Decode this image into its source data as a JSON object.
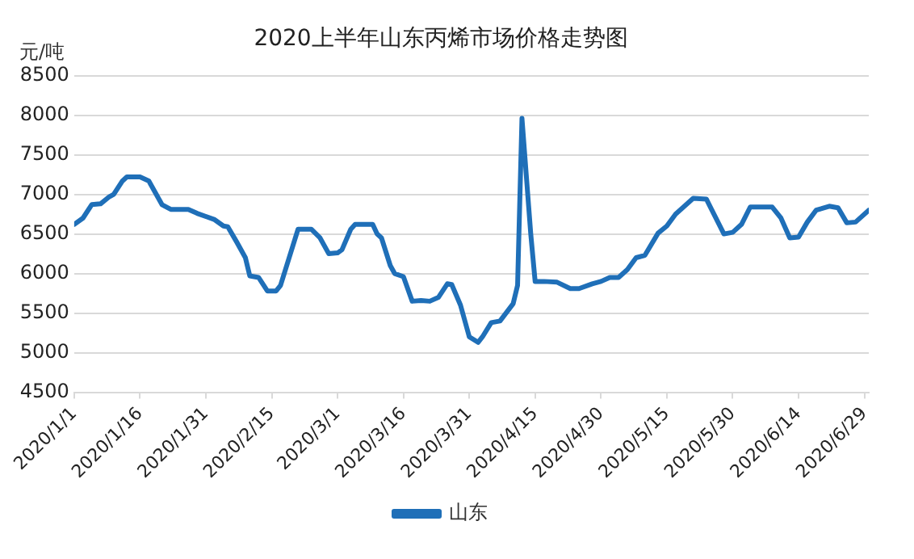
{
  "chart_data": {
    "type": "line",
    "title": "2020上半年山东丙烯市场价格走势图",
    "ylabel": "元/吨",
    "x": [
      "2020-01-01",
      "2020-01-03",
      "2020-01-05",
      "2020-01-07",
      "2020-01-09",
      "2020-01-10",
      "2020-01-12",
      "2020-01-13",
      "2020-01-16",
      "2020-01-18",
      "2020-01-21",
      "2020-01-23",
      "2020-01-27",
      "2020-01-29",
      "2020-02-02",
      "2020-02-04",
      "2020-02-05",
      "2020-02-07",
      "2020-02-09",
      "2020-02-10",
      "2020-02-12",
      "2020-02-14",
      "2020-02-16",
      "2020-02-17",
      "2020-02-21",
      "2020-02-24",
      "2020-02-26",
      "2020-02-28",
      "2020-03-01",
      "2020-03-02",
      "2020-03-04",
      "2020-03-05",
      "2020-03-09",
      "2020-03-10",
      "2020-03-11",
      "2020-03-13",
      "2020-03-14",
      "2020-03-16",
      "2020-03-18",
      "2020-03-20",
      "2020-03-22",
      "2020-03-24",
      "2020-03-26",
      "2020-03-27",
      "2020-03-29",
      "2020-03-31",
      "2020-04-02",
      "2020-04-03",
      "2020-04-05",
      "2020-04-07",
      "2020-04-10",
      "2020-04-11",
      "2020-04-12",
      "2020-04-14",
      "2020-04-15",
      "2020-04-17",
      "2020-04-20",
      "2020-04-23",
      "2020-04-25",
      "2020-04-28",
      "2020-04-30",
      "2020-05-02",
      "2020-05-04",
      "2020-05-06",
      "2020-05-08",
      "2020-05-10",
      "2020-05-13",
      "2020-05-15",
      "2020-05-17",
      "2020-05-21",
      "2020-05-24",
      "2020-05-28",
      "2020-05-30",
      "2020-06-01",
      "2020-06-03",
      "2020-06-08",
      "2020-06-10",
      "2020-06-12",
      "2020-06-14",
      "2020-06-16",
      "2020-06-18",
      "2020-06-21",
      "2020-06-23",
      "2020-06-25",
      "2020-06-27",
      "2020-06-30"
    ],
    "series": [
      {
        "name": "山东",
        "color": "#1f6fb8",
        "values": [
          6620,
          6700,
          6870,
          6880,
          6970,
          7000,
          7170,
          7220,
          7220,
          7170,
          6870,
          6810,
          6810,
          6760,
          6680,
          6600,
          6590,
          6400,
          6200,
          5970,
          5950,
          5780,
          5780,
          5850,
          6560,
          6560,
          6450,
          6250,
          6260,
          6300,
          6560,
          6620,
          6620,
          6500,
          6450,
          6100,
          6000,
          5960,
          5650,
          5660,
          5650,
          5700,
          5870,
          5860,
          5600,
          5200,
          5130,
          5200,
          5380,
          5400,
          5620,
          5850,
          7960,
          6500,
          5900,
          5900,
          5890,
          5810,
          5810,
          5870,
          5900,
          5950,
          5950,
          6050,
          6200,
          6230,
          6510,
          6600,
          6750,
          6950,
          6940,
          6500,
          6520,
          6620,
          6840,
          6840,
          6700,
          6450,
          6460,
          6650,
          6800,
          6850,
          6830,
          6640,
          6650,
          6800
        ]
      }
    ],
    "xlim": [
      "2020-01-01",
      "2020-06-30"
    ],
    "xticks": [
      {
        "value": "2020-01-01",
        "label": "2020/1/1"
      },
      {
        "value": "2020-01-16",
        "label": "2020/1/16"
      },
      {
        "value": "2020-01-31",
        "label": "2020/1/31"
      },
      {
        "value": "2020-02-15",
        "label": "2020/2/15"
      },
      {
        "value": "2020-03-01",
        "label": "2020/3/1"
      },
      {
        "value": "2020-03-16",
        "label": "2020/3/16"
      },
      {
        "value": "2020-03-31",
        "label": "2020/3/31"
      },
      {
        "value": "2020-04-15",
        "label": "2020/4/15"
      },
      {
        "value": "2020-04-30",
        "label": "2020/4/30"
      },
      {
        "value": "2020-05-15",
        "label": "2020/5/15"
      },
      {
        "value": "2020-05-30",
        "label": "2020/5/30"
      },
      {
        "value": "2020-06-14",
        "label": "2020/6/14"
      },
      {
        "value": "2020-06-29",
        "label": "2020/6/29"
      }
    ],
    "ylim": [
      4500,
      8500
    ],
    "yticks": [
      4500,
      5000,
      5500,
      6000,
      6500,
      7000,
      7500,
      8000,
      8500
    ],
    "grid": "y",
    "legend": "bottom",
    "marker": "none",
    "line_style": "solid"
  }
}
